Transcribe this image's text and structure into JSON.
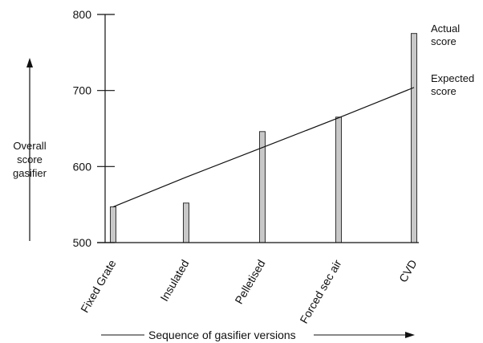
{
  "chart_data": {
    "type": "bar",
    "categories": [
      "Fixed Grate",
      "Insulated",
      "Pelletised",
      "Forced sec air",
      "CVD"
    ],
    "series": [
      {
        "name": "Actual score",
        "values": [
          547,
          552,
          646,
          665,
          775
        ]
      },
      {
        "name": "Expected score",
        "type": "line",
        "values": [
          547,
          586,
          625,
          664,
          704
        ]
      }
    ],
    "ylim": [
      500,
      800
    ],
    "yticks": [
      500,
      600,
      700,
      800
    ],
    "ylabel": [
      "Overall",
      "score",
      "gasifier"
    ],
    "xlabel": "Sequence of gasifier versions",
    "annotations": {
      "actual": [
        "Actual",
        "score"
      ],
      "expected": [
        "Expected",
        "score"
      ]
    },
    "grid": false,
    "colors": {
      "bar_fill": "#c8c8c8",
      "bar_stroke": "#333333",
      "line": "#111111",
      "axis": "#111111"
    }
  }
}
